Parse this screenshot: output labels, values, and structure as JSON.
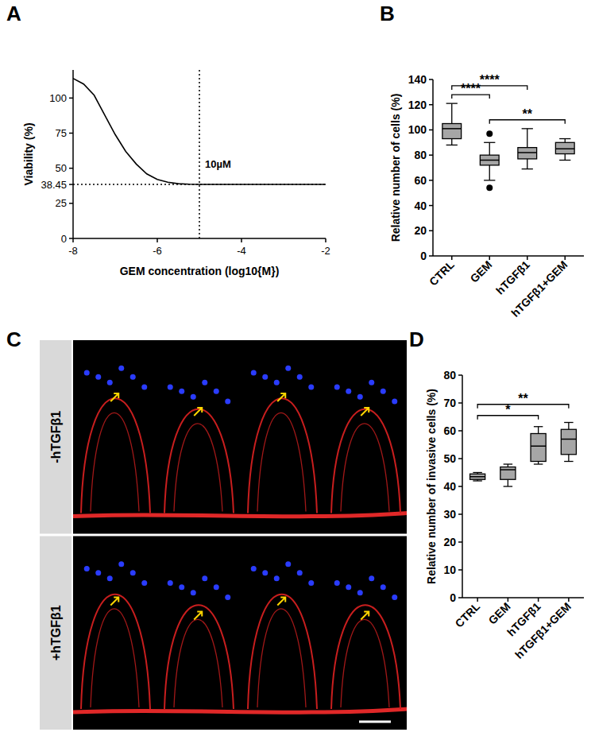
{
  "chart_data": [
    {
      "panel_label": "A",
      "type": "line",
      "x": [
        -8,
        -7.75,
        -7.5,
        -7.25,
        -7,
        -6.75,
        -6.5,
        -6.25,
        -6,
        -5.75,
        -5.5,
        -5.25,
        -5,
        -4.5,
        -4,
        -3.5,
        -3,
        -2.5,
        -2
      ],
      "values": [
        114,
        110,
        102,
        88,
        74,
        62,
        53,
        46,
        42,
        40,
        39,
        38.6,
        38.5,
        38.45,
        38.45,
        38.45,
        38.45,
        38.45,
        38.45
      ],
      "color": "#000000",
      "line_style": "solid",
      "marker": "none",
      "xlabel": "GEM concentration (log10{M})",
      "ylabel": "Viability (%)",
      "xlim": [
        -8,
        -2
      ],
      "xticks": [
        -8,
        -6,
        -4,
        -2
      ],
      "ylim": [
        0,
        120
      ],
      "yticks": [
        0,
        25,
        38.45,
        50,
        75,
        100
      ],
      "vline": -5,
      "hline": 38.45,
      "annotations": [
        {
          "text": "10µM",
          "x": -5
        }
      ],
      "grid": false
    },
    {
      "panel_label": "B",
      "type": "box",
      "categories": [
        "CTRL",
        "GEM",
        "hTGFβ1",
        "hTGFβ1+GEM"
      ],
      "min": [
        88,
        60,
        69,
        76
      ],
      "q1": [
        93,
        72,
        77,
        81
      ],
      "median": [
        101,
        76,
        82,
        85
      ],
      "q3": [
        105,
        80,
        86,
        90
      ],
      "max": [
        121,
        90,
        101,
        93
      ],
      "outliers": [
        [],
        [
          97,
          54
        ],
        [],
        []
      ],
      "color": "#a6a6a6",
      "ylabel": "Relative number of cells (%)",
      "ylim": [
        0,
        140
      ],
      "yticks": [
        0,
        20,
        40,
        60,
        80,
        100,
        120,
        140
      ],
      "comparisons": [
        {
          "pair": [
            "GEM",
            "hTGFβ1+GEM"
          ],
          "label": "**"
        },
        {
          "pair": [
            "CTRL",
            "GEM"
          ],
          "label": "****"
        },
        {
          "pair": [
            "CTRL",
            "hTGFβ1"
          ],
          "label": "****"
        }
      ],
      "grid": false
    },
    {
      "panel_label": "D",
      "type": "box",
      "categories": [
        "CTRL",
        "GEM",
        "hTGFβ1",
        "hTGFβ1+GEM"
      ],
      "min": [
        42,
        40,
        48,
        49
      ],
      "q1": [
        42.5,
        42.5,
        49,
        51.5
      ],
      "median": [
        43.5,
        46,
        54.5,
        57
      ],
      "q3": [
        44.5,
        47,
        59,
        60.5
      ],
      "max": [
        45,
        48,
        61.5,
        63
      ],
      "outliers": [
        [],
        [],
        [],
        []
      ],
      "color": "#a6a6a6",
      "ylabel": "Relative number of invasive cells (%)",
      "ylim": [
        0,
        80
      ],
      "yticks": [
        0,
        10,
        20,
        30,
        40,
        50,
        60,
        70,
        80
      ],
      "comparisons": [
        {
          "pair": [
            "CTRL",
            "hTGFβ1"
          ],
          "label": "*"
        },
        {
          "pair": [
            "CTRL",
            "hTGFβ1+GEM"
          ],
          "label": "**"
        }
      ],
      "grid": false
    }
  ],
  "image_panel": {
    "panel_label": "C",
    "labels": [
      "-hTGFβ1",
      "+hTGFβ1"
    ]
  }
}
